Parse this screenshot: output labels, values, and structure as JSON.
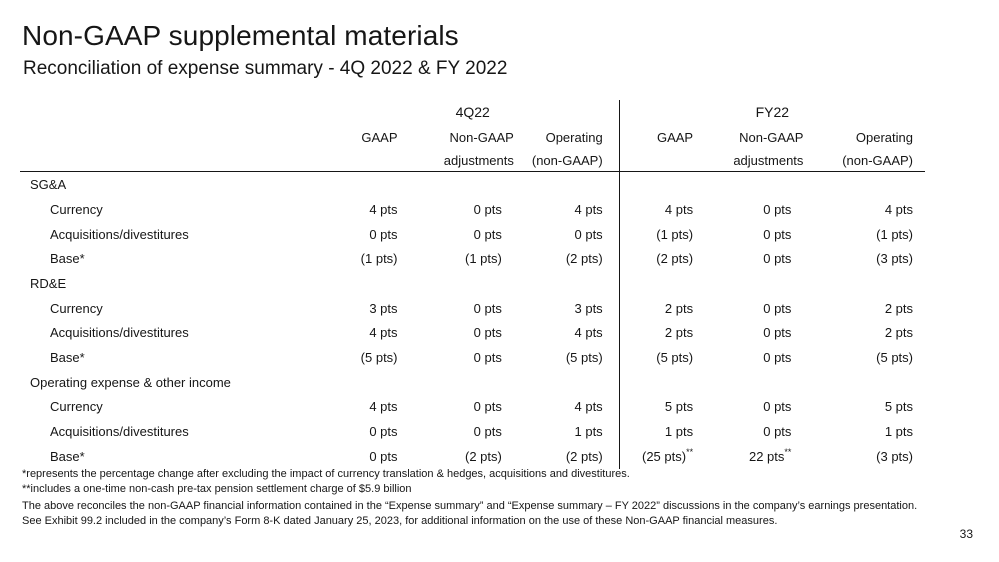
{
  "title": "Non-GAAP supplemental materials",
  "subtitle": "Reconciliation of expense summary - 4Q 2022 & FY 2022",
  "groups": [
    "4Q22",
    "FY22"
  ],
  "columns": [
    "GAAP",
    "Non-GAAP",
    "Operating"
  ],
  "columns_sub": [
    "",
    "adjustments",
    "(non-GAAP)"
  ],
  "sections": [
    {
      "label": "SG&A",
      "rows": [
        {
          "label": "Currency",
          "values": [
            "4 pts",
            "0 pts",
            "4 pts",
            "4 pts",
            "0 pts",
            "4 pts"
          ],
          "marks": [
            "",
            "",
            "",
            "",
            "",
            ""
          ]
        },
        {
          "label": "Acquisitions/divestitures",
          "values": [
            "0 pts",
            "0 pts",
            "0 pts",
            "(1 pts)",
            "0 pts",
            "(1 pts)"
          ],
          "marks": [
            "",
            "",
            "",
            "",
            "",
            ""
          ]
        },
        {
          "label": "Base*",
          "values": [
            "(1 pts)",
            "(1 pts)",
            "(2 pts)",
            "(2 pts)",
            "0 pts",
            "(3 pts)"
          ],
          "marks": [
            "",
            "",
            "",
            "",
            "",
            ""
          ]
        }
      ]
    },
    {
      "label": "RD&E",
      "rows": [
        {
          "label": "Currency",
          "values": [
            "3 pts",
            "0 pts",
            "3 pts",
            "2 pts",
            "0 pts",
            "2 pts"
          ],
          "marks": [
            "",
            "",
            "",
            "",
            "",
            ""
          ]
        },
        {
          "label": "Acquisitions/divestitures",
          "values": [
            "4 pts",
            "0 pts",
            "4 pts",
            "2 pts",
            "0 pts",
            "2 pts"
          ],
          "marks": [
            "",
            "",
            "",
            "",
            "",
            ""
          ]
        },
        {
          "label": "Base*",
          "values": [
            "(5 pts)",
            "0 pts",
            "(5 pts)",
            "(5 pts)",
            "0 pts",
            "(5 pts)"
          ],
          "marks": [
            "",
            "",
            "",
            "",
            "",
            ""
          ]
        }
      ]
    },
    {
      "label": "Operating expense & other income",
      "rows": [
        {
          "label": "Currency",
          "values": [
            "4 pts",
            "0 pts",
            "4 pts",
            "5 pts",
            "0 pts",
            "5 pts"
          ],
          "marks": [
            "",
            "",
            "",
            "",
            "",
            ""
          ]
        },
        {
          "label": "Acquisitions/divestitures",
          "values": [
            "0 pts",
            "0 pts",
            "1 pts",
            "1 pts",
            "0 pts",
            "1 pts"
          ],
          "marks": [
            "",
            "",
            "",
            "",
            "",
            ""
          ]
        },
        {
          "label": "Base*",
          "values": [
            "0 pts",
            "(2 pts)",
            "(2 pts)",
            "(25 pts)",
            "22 pts",
            "(3 pts)"
          ],
          "marks": [
            "",
            "",
            "",
            "**",
            "**",
            ""
          ]
        }
      ]
    }
  ],
  "footnotes": [
    "*represents the percentage change after excluding the impact of currency translation & hedges, acquisitions and divestitures.",
    "**includes a one-time non-cash pre-tax pension settlement charge of $5.9 billion",
    "The above reconciles the non-GAAP financial information contained in the “Expense summary” and “Expense summary – FY 2022” discussions in the company’s earnings presentation. See Exhibit 99.2 included in the company’s Form 8-K dated January 25, 2023, for additional information on the use of these Non-GAAP financial measures."
  ],
  "page_number": "33"
}
